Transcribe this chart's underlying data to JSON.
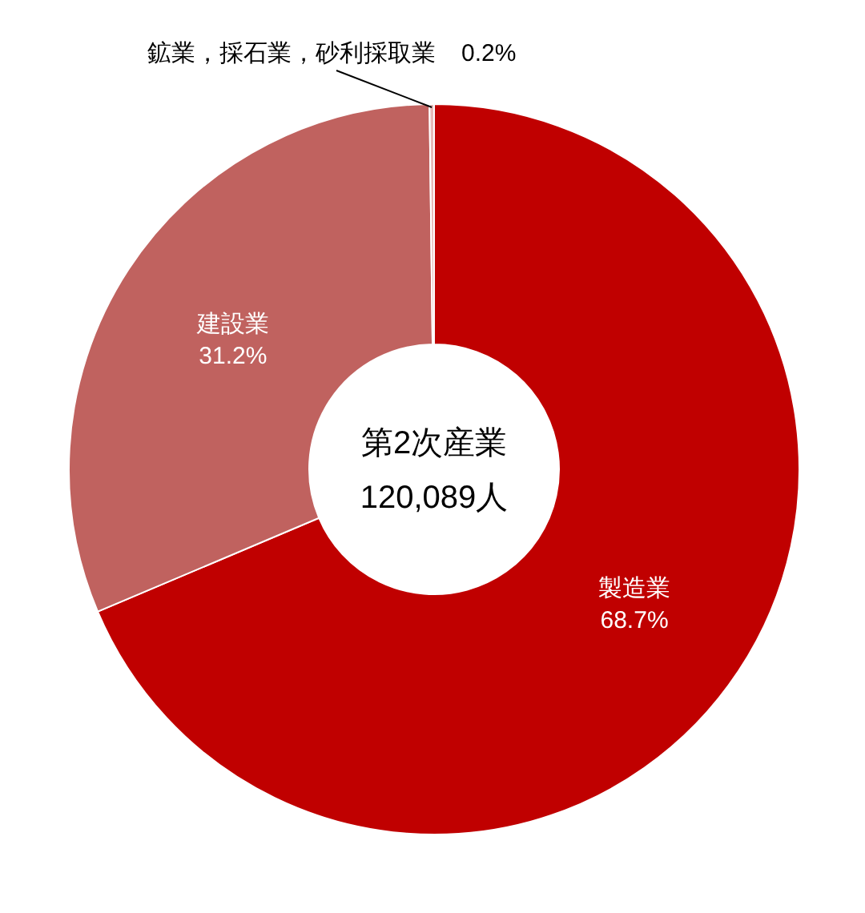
{
  "chart_data": {
    "type": "donut",
    "title": "第2次産業",
    "subtitle": "120,089人",
    "categories": [
      "製造業",
      "建設業",
      "鉱業，採石業，砂利採取業"
    ],
    "values": [
      68.7,
      31.2,
      0.2
    ],
    "colors": [
      "#c00000",
      "#c0625f",
      "#e6b9b8"
    ],
    "value_labels": [
      "68.7%",
      "31.2%",
      "0.2%"
    ]
  }
}
